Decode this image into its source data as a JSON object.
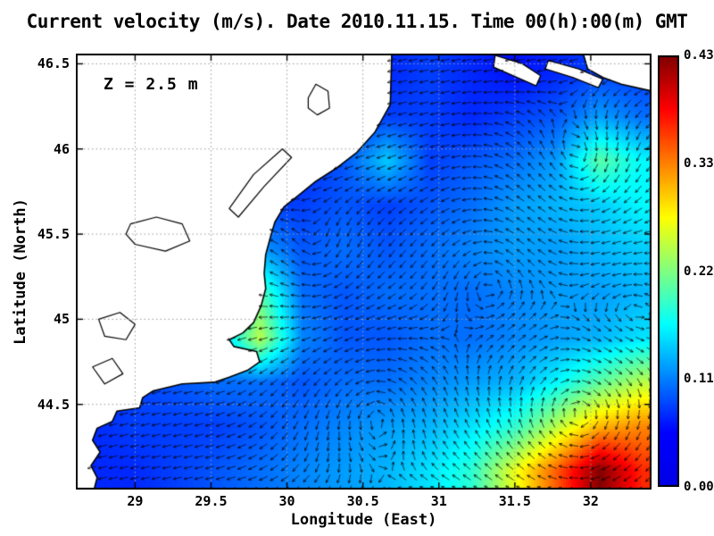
{
  "chart_data": {
    "type": "heatmap",
    "title": "Current velocity (m/s). Date 2010.11.15. Time 00(h):00(m) GMT",
    "xlabel": "Longitude (East)",
    "ylabel": "Latitude (North)",
    "annotation": "Z = 2.5 m",
    "units": "m/s",
    "xlim": [
      28.61,
      32.4
    ],
    "ylim": [
      44.0,
      46.56
    ],
    "x_ticks": [
      29,
      29.5,
      30,
      30.5,
      31,
      31.5,
      32
    ],
    "x_tick_labels": [
      "29",
      "29.5",
      "30",
      "30.5",
      "31",
      "31.5",
      "32"
    ],
    "y_ticks": [
      44.5,
      45,
      45.5,
      46,
      46.5
    ],
    "y_tick_labels": [
      "44.5",
      "45",
      "45.5",
      "46",
      "46.5"
    ],
    "grid": "dotted",
    "legend_position": "none",
    "colorbar": {
      "min": 0.0,
      "max": 0.43,
      "tick_labels": [
        "0.43",
        "0.33",
        "0.22",
        "0.11",
        "0.00"
      ],
      "colormap": "jet",
      "stops": [
        {
          "t": 0.0,
          "c": "#0000e6"
        },
        {
          "t": 0.125,
          "c": "#0000ff"
        },
        {
          "t": 0.25,
          "c": "#0080ff"
        },
        {
          "t": 0.375,
          "c": "#00ffff"
        },
        {
          "t": 0.5,
          "c": "#80ff80"
        },
        {
          "t": 0.625,
          "c": "#ffff00"
        },
        {
          "t": 0.75,
          "c": "#ff8000"
        },
        {
          "t": 0.875,
          "c": "#ff0000"
        },
        {
          "t": 1.0,
          "c": "#800000"
        }
      ]
    },
    "speed_grid": {
      "comment": "estimated current speed (m/s) on lon/lat grid, rows north to south",
      "lons": [
        28.7,
        28.98,
        29.26,
        29.54,
        29.82,
        30.1,
        30.38,
        30.66,
        30.94,
        31.22,
        31.5,
        31.78,
        32.06,
        32.34
      ],
      "lats": [
        46.45,
        46.19,
        45.93,
        45.67,
        45.41,
        45.15,
        44.89,
        44.63,
        44.37,
        44.11
      ],
      "values": [
        [
          0.06,
          0.06,
          0.06,
          0.06,
          0.06,
          0.06,
          0.07,
          0.07,
          0.08,
          0.07,
          0.06,
          0.07,
          0.08,
          0.08
        ],
        [
          0.06,
          0.06,
          0.06,
          0.06,
          0.06,
          0.07,
          0.07,
          0.08,
          0.08,
          0.07,
          0.08,
          0.09,
          0.12,
          0.1
        ],
        [
          0.06,
          0.06,
          0.06,
          0.06,
          0.07,
          0.07,
          0.09,
          0.14,
          0.08,
          0.09,
          0.1,
          0.12,
          0.2,
          0.16
        ],
        [
          0.06,
          0.06,
          0.06,
          0.07,
          0.08,
          0.08,
          0.09,
          0.08,
          0.09,
          0.1,
          0.12,
          0.13,
          0.14,
          0.16
        ],
        [
          0.06,
          0.06,
          0.07,
          0.09,
          0.12,
          0.09,
          0.1,
          0.09,
          0.1,
          0.11,
          0.12,
          0.12,
          0.13,
          0.14
        ],
        [
          0.06,
          0.06,
          0.08,
          0.12,
          0.2,
          0.1,
          0.09,
          0.1,
          0.1,
          0.1,
          0.11,
          0.12,
          0.12,
          0.13
        ],
        [
          0.06,
          0.07,
          0.09,
          0.12,
          0.24,
          0.11,
          0.09,
          0.09,
          0.1,
          0.1,
          0.11,
          0.12,
          0.13,
          0.15
        ],
        [
          0.07,
          0.08,
          0.09,
          0.1,
          0.1,
          0.09,
          0.1,
          0.1,
          0.11,
          0.12,
          0.13,
          0.16,
          0.2,
          0.24
        ],
        [
          0.07,
          0.08,
          0.08,
          0.08,
          0.09,
          0.1,
          0.11,
          0.12,
          0.13,
          0.15,
          0.18,
          0.24,
          0.3,
          0.32
        ],
        [
          0.07,
          0.07,
          0.08,
          0.09,
          0.1,
          0.11,
          0.12,
          0.13,
          0.15,
          0.18,
          0.26,
          0.34,
          0.43,
          0.36
        ]
      ]
    },
    "map": {
      "coast_main": [
        [
          30.69,
          46.56
        ],
        [
          30.68,
          46.26
        ],
        [
          30.58,
          46.1
        ],
        [
          30.46,
          45.98
        ],
        [
          30.33,
          45.89
        ],
        [
          30.19,
          45.81
        ],
        [
          30.08,
          45.73
        ],
        [
          29.98,
          45.66
        ],
        [
          29.92,
          45.57
        ],
        [
          29.89,
          45.48
        ],
        [
          29.86,
          45.38
        ],
        [
          29.85,
          45.27
        ],
        [
          29.86,
          45.18
        ],
        [
          29.83,
          45.08
        ],
        [
          29.78,
          44.98
        ],
        [
          29.71,
          44.92
        ],
        [
          29.62,
          44.88
        ],
        [
          29.65,
          44.84
        ],
        [
          29.8,
          44.81
        ],
        [
          29.82,
          44.75
        ],
        [
          29.74,
          44.7
        ],
        [
          29.62,
          44.66
        ],
        [
          29.52,
          44.63
        ],
        [
          29.31,
          44.62
        ],
        [
          29.12,
          44.58
        ],
        [
          29.05,
          44.54
        ],
        [
          29.03,
          44.48
        ],
        [
          28.88,
          44.46
        ],
        [
          28.85,
          44.4
        ],
        [
          28.75,
          44.36
        ],
        [
          28.72,
          44.29
        ],
        [
          28.77,
          44.22
        ],
        [
          28.71,
          44.14
        ],
        [
          28.75,
          44.07
        ],
        [
          28.73,
          44.0
        ],
        [
          28.61,
          44.0
        ],
        [
          28.61,
          46.56
        ]
      ],
      "mainland_ne": [
        [
          31.95,
          46.56
        ],
        [
          31.98,
          46.47
        ],
        [
          32.08,
          46.42
        ],
        [
          32.2,
          46.38
        ],
        [
          32.4,
          46.34
        ],
        [
          32.4,
          46.56
        ]
      ],
      "islands": [
        [
          [
            31.37,
            46.55
          ],
          [
            31.55,
            46.5
          ],
          [
            31.67,
            46.43
          ],
          [
            31.64,
            46.37
          ],
          [
            31.49,
            46.43
          ],
          [
            31.36,
            46.48
          ]
        ],
        [
          [
            31.72,
            46.52
          ],
          [
            31.92,
            46.47
          ],
          [
            32.08,
            46.41
          ],
          [
            32.05,
            46.36
          ],
          [
            31.88,
            46.42
          ],
          [
            31.7,
            46.47
          ]
        ]
      ],
      "lakes": [
        [
          [
            29.62,
            45.65
          ],
          [
            29.78,
            45.85
          ],
          [
            29.97,
            46.0
          ],
          [
            30.03,
            45.95
          ],
          [
            29.85,
            45.78
          ],
          [
            29.68,
            45.6
          ]
        ],
        [
          [
            30.14,
            46.3
          ],
          [
            30.19,
            46.38
          ],
          [
            30.27,
            46.34
          ],
          [
            30.28,
            46.24
          ],
          [
            30.2,
            46.2
          ],
          [
            30.14,
            46.24
          ]
        ],
        [
          [
            28.97,
            45.56
          ],
          [
            29.14,
            45.6
          ],
          [
            29.31,
            45.56
          ],
          [
            29.36,
            45.46
          ],
          [
            29.2,
            45.4
          ],
          [
            29.0,
            45.44
          ],
          [
            28.94,
            45.5
          ]
        ],
        [
          [
            28.76,
            45.0
          ],
          [
            28.9,
            45.04
          ],
          [
            29.0,
            44.97
          ],
          [
            28.94,
            44.88
          ],
          [
            28.8,
            44.9
          ]
        ],
        [
          [
            28.72,
            44.72
          ],
          [
            28.85,
            44.77
          ],
          [
            28.92,
            44.68
          ],
          [
            28.8,
            44.62
          ]
        ]
      ]
    },
    "flow": {
      "base": [
        -0.35,
        -0.08
      ],
      "eddies": [
        {
          "lon": 31.95,
          "lat": 44.35,
          "r": 0.55,
          "s": -1.6
        },
        {
          "lon": 31.35,
          "lat": 45.35,
          "r": 0.5,
          "s": 1.2
        },
        {
          "lon": 31.9,
          "lat": 45.75,
          "r": 0.45,
          "s": -1.1
        },
        {
          "lon": 30.55,
          "lat": 44.6,
          "r": 0.5,
          "s": 1.0
        },
        {
          "lon": 30.25,
          "lat": 45.25,
          "r": 0.35,
          "s": -0.8
        },
        {
          "lon": 32.2,
          "lat": 45.1,
          "r": 0.4,
          "s": 0.9
        }
      ]
    }
  }
}
